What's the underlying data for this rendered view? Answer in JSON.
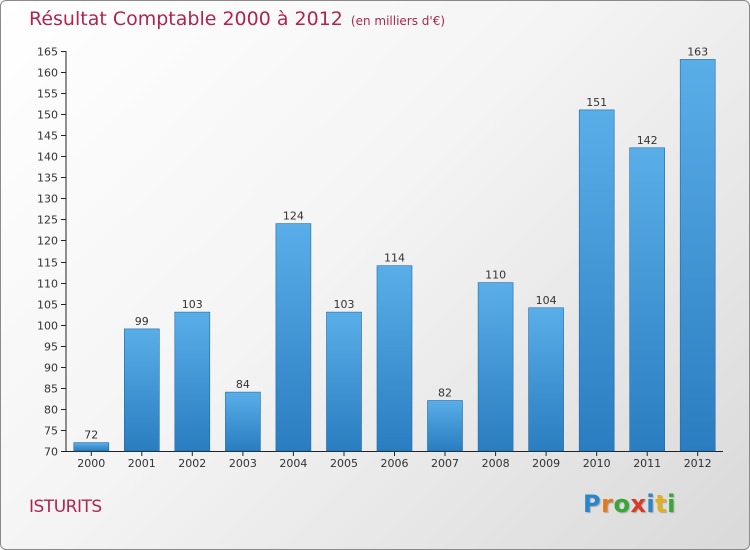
{
  "chart_data": {
    "type": "bar",
    "title": "Résultat Comptable 2000 à 2012",
    "subtitle": "(en milliers d'€)",
    "categories": [
      "2000",
      "2001",
      "2002",
      "2003",
      "2004",
      "2005",
      "2006",
      "2007",
      "2008",
      "2009",
      "2010",
      "2011",
      "2012"
    ],
    "values": [
      72,
      99,
      103,
      84,
      124,
      103,
      114,
      82,
      110,
      104,
      151,
      142,
      163
    ],
    "value_labels": [
      "72",
      "99",
      "103",
      "84",
      "124",
      "103",
      "114",
      "82",
      "110",
      "104",
      "151",
      "142",
      "163"
    ],
    "ylim": [
      70,
      165
    ],
    "yticks": [
      70,
      75,
      80,
      85,
      90,
      95,
      100,
      105,
      110,
      115,
      120,
      125,
      130,
      135,
      140,
      145,
      150,
      155,
      160,
      165
    ],
    "xlabel": "",
    "ylabel": "",
    "grid": false,
    "colors": {
      "bar_top": "#5aaee8",
      "bar_bottom": "#2a7dc0",
      "title": "#b0254f",
      "axis": "#222222"
    }
  },
  "place": "ISTURITS",
  "brand": {
    "letters": [
      "P",
      "r",
      "o",
      "x",
      "i",
      "t",
      "i"
    ],
    "colors": [
      "#2a86c9",
      "#e07a1e",
      "#3aa635",
      "#d93a2a",
      "#2a86c9",
      "#e0b020",
      "#3aa635"
    ]
  }
}
